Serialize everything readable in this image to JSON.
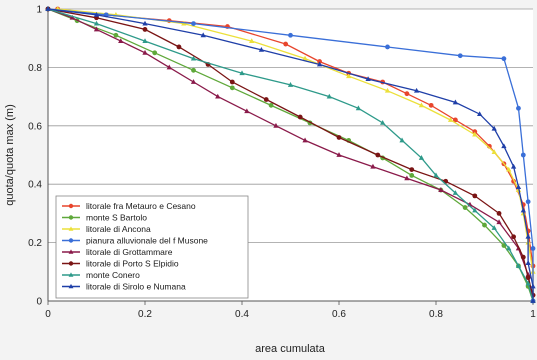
{
  "chart_data": {
    "type": "line",
    "title": "",
    "xlabel": "area cumulata",
    "ylabel": "quota/quota max (m)",
    "xlim": [
      0,
      1
    ],
    "ylim": [
      0,
      1
    ],
    "x_ticks": [
      "0",
      "0.2",
      "0.4",
      "0.6",
      "0.8",
      "1"
    ],
    "y_ticks": [
      "0",
      "0.2",
      "0.4",
      "0.6",
      "0.8",
      "1"
    ],
    "grid": "horizontal",
    "legend_position": "bottom-left",
    "series": [
      {
        "name": "litorale fra Metauro e Cesano",
        "color": "#e8452c",
        "marker": "circle",
        "points": [
          [
            0.02,
            1.0
          ],
          [
            0.12,
            0.98
          ],
          [
            0.25,
            0.96
          ],
          [
            0.37,
            0.94
          ],
          [
            0.49,
            0.88
          ],
          [
            0.56,
            0.82
          ],
          [
            0.62,
            0.78
          ],
          [
            0.69,
            0.75
          ],
          [
            0.74,
            0.71
          ],
          [
            0.79,
            0.67
          ],
          [
            0.84,
            0.62
          ],
          [
            0.88,
            0.58
          ],
          [
            0.91,
            0.53
          ],
          [
            0.94,
            0.47
          ],
          [
            0.96,
            0.41
          ],
          [
            0.98,
            0.33
          ],
          [
            0.99,
            0.24
          ],
          [
            1.0,
            0.12
          ],
          [
            1.0,
            0.02
          ]
        ]
      },
      {
        "name": "monte S Bartolo",
        "color": "#5fa83a",
        "marker": "circle",
        "points": [
          [
            0.0,
            1.0
          ],
          [
            0.06,
            0.96
          ],
          [
            0.14,
            0.91
          ],
          [
            0.22,
            0.85
          ],
          [
            0.3,
            0.79
          ],
          [
            0.38,
            0.73
          ],
          [
            0.46,
            0.67
          ],
          [
            0.54,
            0.61
          ],
          [
            0.62,
            0.55
          ],
          [
            0.69,
            0.49
          ],
          [
            0.75,
            0.43
          ],
          [
            0.81,
            0.38
          ],
          [
            0.86,
            0.32
          ],
          [
            0.9,
            0.26
          ],
          [
            0.94,
            0.19
          ],
          [
            0.97,
            0.12
          ],
          [
            0.99,
            0.05
          ],
          [
            1.0,
            0.0
          ]
        ]
      },
      {
        "name": "litorale di Ancona",
        "color": "#ece03a",
        "marker": "triangle",
        "points": [
          [
            0.02,
            1.0
          ],
          [
            0.14,
            0.98
          ],
          [
            0.28,
            0.95
          ],
          [
            0.42,
            0.89
          ],
          [
            0.53,
            0.83
          ],
          [
            0.62,
            0.77
          ],
          [
            0.7,
            0.72
          ],
          [
            0.77,
            0.67
          ],
          [
            0.83,
            0.62
          ],
          [
            0.88,
            0.57
          ],
          [
            0.92,
            0.51
          ],
          [
            0.95,
            0.45
          ],
          [
            0.97,
            0.38
          ],
          [
            0.98,
            0.3
          ],
          [
            0.99,
            0.2
          ],
          [
            1.0,
            0.1
          ],
          [
            1.0,
            0.0
          ]
        ]
      },
      {
        "name": "pianura alluvionale del f Musone",
        "color": "#3a6fd8",
        "marker": "circle",
        "points": [
          [
            0.0,
            1.0
          ],
          [
            0.12,
            0.98
          ],
          [
            0.3,
            0.95
          ],
          [
            0.5,
            0.91
          ],
          [
            0.7,
            0.87
          ],
          [
            0.85,
            0.84
          ],
          [
            0.94,
            0.83
          ],
          [
            0.97,
            0.66
          ],
          [
            0.98,
            0.5
          ],
          [
            0.99,
            0.34
          ],
          [
            1.0,
            0.18
          ],
          [
            1.0,
            0.0
          ]
        ]
      },
      {
        "name": "litorale di Grottammare",
        "color": "#8a1a4a",
        "marker": "triangle",
        "points": [
          [
            0.0,
            1.0
          ],
          [
            0.05,
            0.97
          ],
          [
            0.1,
            0.93
          ],
          [
            0.15,
            0.89
          ],
          [
            0.2,
            0.85
          ],
          [
            0.25,
            0.8
          ],
          [
            0.3,
            0.75
          ],
          [
            0.35,
            0.7
          ],
          [
            0.41,
            0.65
          ],
          [
            0.47,
            0.6
          ],
          [
            0.53,
            0.55
          ],
          [
            0.6,
            0.5
          ],
          [
            0.67,
            0.46
          ],
          [
            0.74,
            0.42
          ],
          [
            0.81,
            0.38
          ],
          [
            0.87,
            0.33
          ],
          [
            0.93,
            0.27
          ],
          [
            0.97,
            0.18
          ],
          [
            0.99,
            0.09
          ],
          [
            1.0,
            0.0
          ]
        ]
      },
      {
        "name": "litorale di Porto S Elpidio",
        "color": "#7a1414",
        "marker": "circle",
        "points": [
          [
            0.0,
            1.0
          ],
          [
            0.1,
            0.97
          ],
          [
            0.2,
            0.93
          ],
          [
            0.27,
            0.87
          ],
          [
            0.33,
            0.81
          ],
          [
            0.38,
            0.75
          ],
          [
            0.45,
            0.69
          ],
          [
            0.52,
            0.63
          ],
          [
            0.6,
            0.56
          ],
          [
            0.68,
            0.5
          ],
          [
            0.75,
            0.45
          ],
          [
            0.82,
            0.41
          ],
          [
            0.88,
            0.36
          ],
          [
            0.93,
            0.3
          ],
          [
            0.96,
            0.22
          ],
          [
            0.98,
            0.15
          ],
          [
            0.99,
            0.08
          ],
          [
            1.0,
            0.02
          ]
        ]
      },
      {
        "name": "monte Conero",
        "color": "#2e9a8a",
        "marker": "triangle",
        "points": [
          [
            0.0,
            1.0
          ],
          [
            0.1,
            0.95
          ],
          [
            0.2,
            0.89
          ],
          [
            0.3,
            0.83
          ],
          [
            0.4,
            0.78
          ],
          [
            0.5,
            0.74
          ],
          [
            0.58,
            0.7
          ],
          [
            0.64,
            0.66
          ],
          [
            0.69,
            0.61
          ],
          [
            0.73,
            0.55
          ],
          [
            0.77,
            0.49
          ],
          [
            0.8,
            0.43
          ],
          [
            0.84,
            0.37
          ],
          [
            0.88,
            0.31
          ],
          [
            0.92,
            0.25
          ],
          [
            0.95,
            0.18
          ],
          [
            0.97,
            0.12
          ],
          [
            0.99,
            0.06
          ],
          [
            1.0,
            0.0
          ]
        ]
      },
      {
        "name": "litorale di Sirolo e Numana",
        "color": "#1f3fa8",
        "marker": "triangle",
        "points": [
          [
            0.0,
            1.0
          ],
          [
            0.1,
            0.98
          ],
          [
            0.2,
            0.95
          ],
          [
            0.32,
            0.91
          ],
          [
            0.44,
            0.86
          ],
          [
            0.56,
            0.81
          ],
          [
            0.66,
            0.76
          ],
          [
            0.76,
            0.72
          ],
          [
            0.84,
            0.68
          ],
          [
            0.89,
            0.64
          ],
          [
            0.92,
            0.59
          ],
          [
            0.94,
            0.53
          ],
          [
            0.96,
            0.46
          ],
          [
            0.97,
            0.39
          ],
          [
            0.98,
            0.31
          ],
          [
            0.99,
            0.22
          ],
          [
            0.99,
            0.13
          ],
          [
            1.0,
            0.05
          ],
          [
            1.0,
            0.0
          ]
        ]
      }
    ]
  }
}
